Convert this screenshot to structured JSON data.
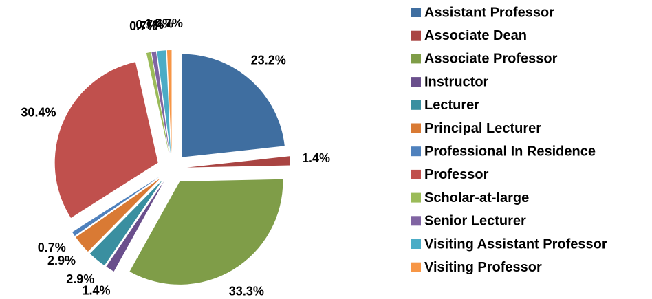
{
  "chart_data": {
    "type": "pie",
    "categories": [
      "Assistant Professor",
      "Associate Dean",
      "Associate Professor",
      "Instructor",
      "Lecturer",
      "Principal Lecturer",
      "Professional In Residence",
      "Professor",
      "Scholar-at-large",
      "Senior Lecturer",
      "Visiting Assistant Professor",
      "Visiting Professor"
    ],
    "values": [
      23.2,
      1.4,
      33.3,
      1.4,
      2.9,
      2.9,
      0.7,
      30.4,
      0.7,
      0.7,
      1.4,
      0.7
    ],
    "value_labels": [
      "23.2%",
      "1.4%",
      "33.3%",
      "1.4%",
      "2.9%",
      "2.9%",
      "0.7%",
      "30.4%",
      "0.7%",
      "0.7%",
      "1.4%",
      "0.7%"
    ],
    "colors": [
      "#3f6ea0",
      "#a94442",
      "#7f9d48",
      "#6a4f8c",
      "#3a8fa0",
      "#d97a34",
      "#4f81bd",
      "#c0504d",
      "#9bbb59",
      "#8064a2",
      "#4bacc6",
      "#f79646"
    ],
    "legend": "right"
  }
}
